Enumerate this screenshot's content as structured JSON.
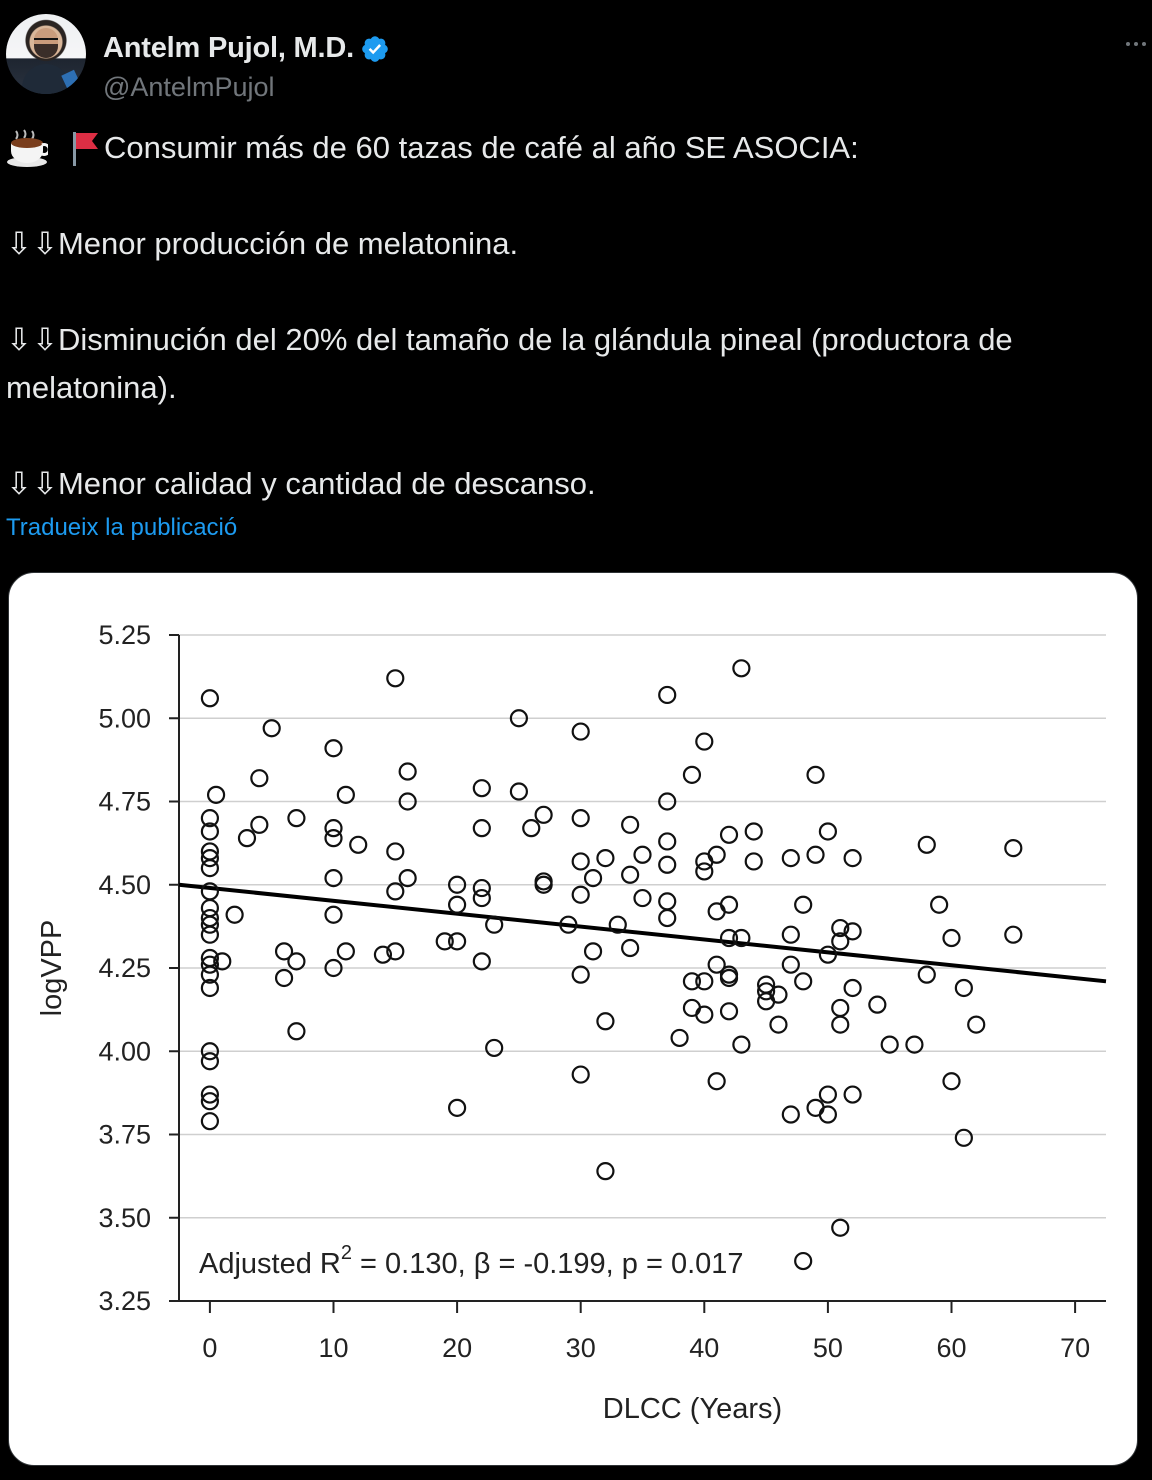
{
  "author": {
    "display_name": "Antelm Pujol, M.D.",
    "handle": "@AntelmPujol",
    "verified": true,
    "verified_color": "#1d9bf0"
  },
  "menu": {
    "icon": "more-horizontal-icon"
  },
  "tweet": {
    "lead": "Consumir más de 60 tazas de café al año SE ASOCIA:",
    "lead_icons": [
      "coffee-icon",
      "red-flag-icon"
    ],
    "points": [
      {
        "arrows": "⇩⇩",
        "text": "Menor producción de melatonina."
      },
      {
        "arrows": "⇩⇩",
        "text": "Disminución del 20% del tamaño de la glándula pineal (productora de melatonina)."
      },
      {
        "arrows": "⇩⇩",
        "text": "Menor calidad y cantidad de descanso."
      }
    ],
    "translate_link": "Tradueix la publicació"
  },
  "colors": {
    "background": "#000000",
    "text": "#e7e9ea",
    "secondary": "#71767b",
    "link": "#1d9bf0"
  },
  "chart_data": {
    "type": "scatter",
    "xlabel": "DLCC (Years)",
    "ylabel": "logVPP",
    "xlim": [
      -2.5,
      72.5
    ],
    "ylim": [
      3.25,
      5.25
    ],
    "x_ticks": [
      "0",
      "10",
      "20",
      "30",
      "40",
      "50",
      "60",
      "70"
    ],
    "y_ticks": [
      "5.25",
      "5.00",
      "4.75",
      "4.50",
      "4.25",
      "4.00",
      "3.75",
      "3.50",
      "3.25"
    ],
    "grid": "horizontal",
    "annotation": {
      "prefix": "Adjusted R",
      "superscript": "2",
      "suffix": " = 0.130, β = -0.199, p = 0.017"
    },
    "regression_line": {
      "x": [
        -2.5,
        72.5
      ],
      "y": [
        4.5,
        4.21
      ]
    },
    "points": [
      [
        0,
        5.06
      ],
      [
        0,
        4.7
      ],
      [
        0,
        4.66
      ],
      [
        0,
        4.6
      ],
      [
        0,
        4.58
      ],
      [
        0,
        4.55
      ],
      [
        0,
        4.48
      ],
      [
        0,
        4.43
      ],
      [
        0,
        4.4
      ],
      [
        0,
        4.38
      ],
      [
        0,
        4.35
      ],
      [
        0,
        4.28
      ],
      [
        0,
        4.26
      ],
      [
        0,
        4.23
      ],
      [
        0,
        4.19
      ],
      [
        0,
        4.0
      ],
      [
        0,
        3.97
      ],
      [
        0,
        3.87
      ],
      [
        0,
        3.85
      ],
      [
        0,
        3.79
      ],
      [
        0.5,
        4.77
      ],
      [
        1,
        4.27
      ],
      [
        2,
        4.41
      ],
      [
        3,
        4.64
      ],
      [
        4,
        4.82
      ],
      [
        4,
        4.68
      ],
      [
        5,
        4.97
      ],
      [
        6,
        4.3
      ],
      [
        6,
        4.22
      ],
      [
        7,
        4.7
      ],
      [
        7,
        4.27
      ],
      [
        7,
        4.06
      ],
      [
        10,
        4.91
      ],
      [
        10,
        4.67
      ],
      [
        10,
        4.64
      ],
      [
        10,
        4.52
      ],
      [
        10,
        4.41
      ],
      [
        10,
        4.25
      ],
      [
        11,
        4.77
      ],
      [
        11,
        4.3
      ],
      [
        12,
        4.62
      ],
      [
        14,
        4.29
      ],
      [
        15,
        5.12
      ],
      [
        15,
        4.6
      ],
      [
        15,
        4.48
      ],
      [
        15,
        4.3
      ],
      [
        16,
        4.84
      ],
      [
        16,
        4.75
      ],
      [
        16,
        4.52
      ],
      [
        19,
        4.33
      ],
      [
        20,
        4.5
      ],
      [
        20,
        4.44
      ],
      [
        20,
        4.33
      ],
      [
        20,
        3.83
      ],
      [
        22,
        4.79
      ],
      [
        22,
        4.67
      ],
      [
        22,
        4.49
      ],
      [
        22,
        4.46
      ],
      [
        22,
        4.27
      ],
      [
        23,
        4.38
      ],
      [
        23,
        4.01
      ],
      [
        25,
        5.0
      ],
      [
        25,
        4.78
      ],
      [
        26,
        4.67
      ],
      [
        27,
        4.71
      ],
      [
        27,
        4.51
      ],
      [
        27,
        4.5
      ],
      [
        29,
        4.38
      ],
      [
        30,
        4.96
      ],
      [
        30,
        4.7
      ],
      [
        30,
        4.57
      ],
      [
        30,
        4.47
      ],
      [
        30,
        4.23
      ],
      [
        30,
        3.93
      ],
      [
        31,
        4.52
      ],
      [
        31,
        4.3
      ],
      [
        32,
        4.58
      ],
      [
        32,
        4.09
      ],
      [
        32,
        3.64
      ],
      [
        33,
        4.38
      ],
      [
        34,
        4.68
      ],
      [
        34,
        4.53
      ],
      [
        34,
        4.31
      ],
      [
        35,
        4.59
      ],
      [
        35,
        4.46
      ],
      [
        37,
        5.07
      ],
      [
        37,
        4.75
      ],
      [
        37,
        4.63
      ],
      [
        37,
        4.56
      ],
      [
        37,
        4.45
      ],
      [
        37,
        4.4
      ],
      [
        38,
        4.04
      ],
      [
        39,
        4.83
      ],
      [
        39,
        4.21
      ],
      [
        39,
        4.13
      ],
      [
        40,
        4.93
      ],
      [
        40,
        4.57
      ],
      [
        40,
        4.54
      ],
      [
        40,
        4.21
      ],
      [
        40,
        4.11
      ],
      [
        41,
        4.59
      ],
      [
        41,
        4.42
      ],
      [
        41,
        4.26
      ],
      [
        41,
        3.91
      ],
      [
        42,
        4.65
      ],
      [
        42,
        4.44
      ],
      [
        42,
        4.34
      ],
      [
        42,
        4.23
      ],
      [
        42,
        4.22
      ],
      [
        42,
        4.12
      ],
      [
        43,
        5.15
      ],
      [
        43,
        4.34
      ],
      [
        43,
        4.02
      ],
      [
        44,
        4.66
      ],
      [
        44,
        4.57
      ],
      [
        45,
        4.2
      ],
      [
        45,
        4.18
      ],
      [
        45,
        4.15
      ],
      [
        46,
        4.17
      ],
      [
        46,
        4.08
      ],
      [
        47,
        4.58
      ],
      [
        47,
        4.35
      ],
      [
        47,
        4.26
      ],
      [
        47,
        3.81
      ],
      [
        48,
        4.44
      ],
      [
        48,
        4.21
      ],
      [
        48,
        3.37
      ],
      [
        49,
        4.83
      ],
      [
        49,
        4.59
      ],
      [
        49,
        3.83
      ],
      [
        50,
        4.66
      ],
      [
        50,
        4.29
      ],
      [
        50,
        3.87
      ],
      [
        50,
        3.81
      ],
      [
        51,
        4.37
      ],
      [
        51,
        4.33
      ],
      [
        51,
        4.13
      ],
      [
        51,
        4.08
      ],
      [
        51,
        3.47
      ],
      [
        52,
        4.58
      ],
      [
        52,
        4.36
      ],
      [
        52,
        4.19
      ],
      [
        52,
        3.87
      ],
      [
        54,
        4.14
      ],
      [
        55,
        4.02
      ],
      [
        57,
        4.02
      ],
      [
        58,
        4.62
      ],
      [
        58,
        4.23
      ],
      [
        59,
        4.44
      ],
      [
        60,
        4.34
      ],
      [
        60,
        3.91
      ],
      [
        61,
        4.19
      ],
      [
        61,
        3.74
      ],
      [
        62,
        4.08
      ],
      [
        65,
        4.61
      ],
      [
        65,
        4.35
      ]
    ]
  }
}
